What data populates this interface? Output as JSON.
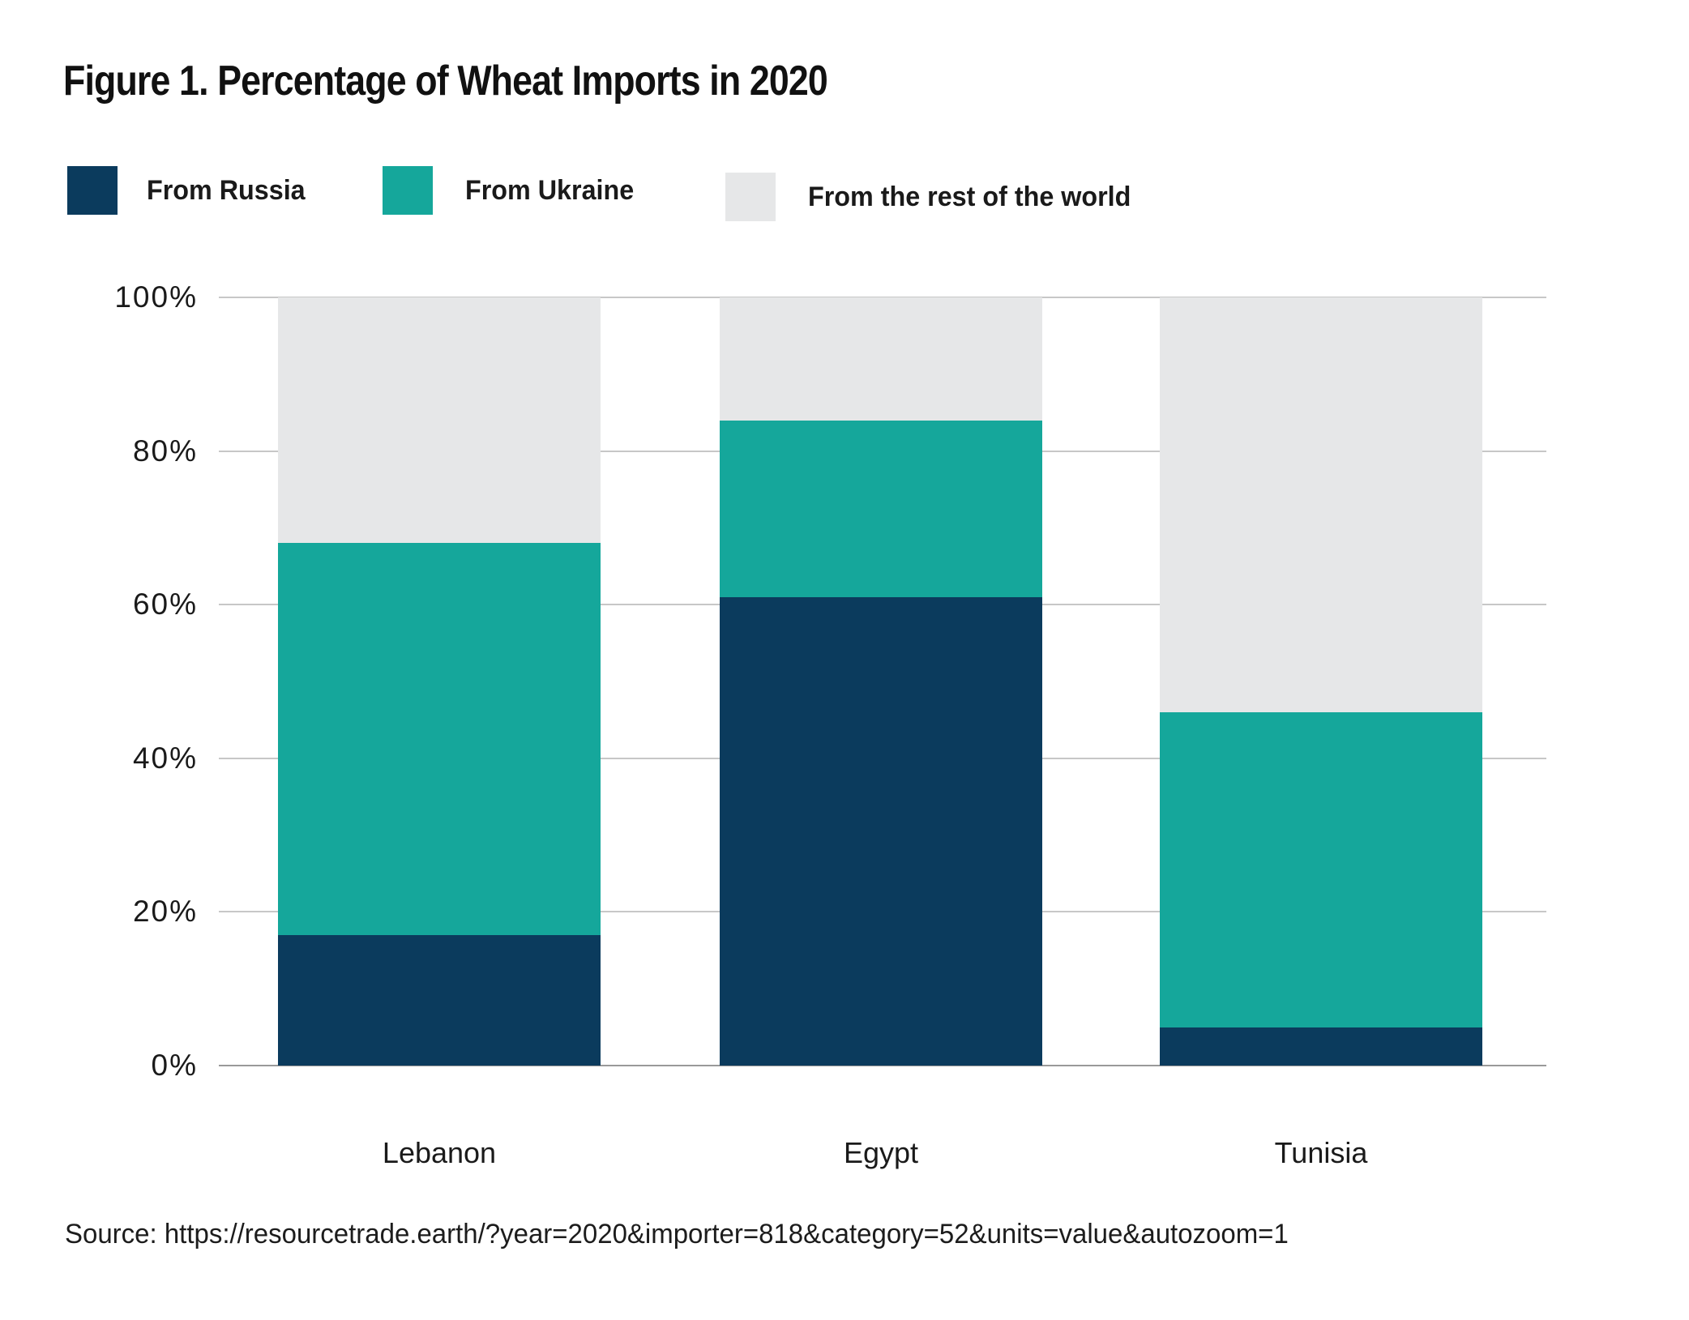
{
  "title": "Figure 1. Percentage of Wheat Imports in 2020",
  "legend": {
    "items": [
      {
        "label": "From Russia",
        "color": "#0B3B5D"
      },
      {
        "label": "From Ukraine",
        "color": "#15A79B"
      },
      {
        "label": "From the rest of the world",
        "color": "#E6E7E8"
      }
    ]
  },
  "y_axis": {
    "tick_labels": [
      "100%",
      "80%",
      "60%",
      "40%",
      "20%",
      "0%"
    ],
    "tick_values": [
      100,
      80,
      60,
      40,
      20,
      0
    ]
  },
  "source": "Source: https://resourcetrade.earth/?year=2020&importer=818&category=52&units=value&autozoom=1",
  "colors": {
    "russia": "#0B3B5D",
    "ukraine": "#15A79B",
    "rest_of_world": "#E6E7E8",
    "gridline": "#c7c7c7",
    "axis_line": "#999999",
    "text": "#1a1a1a"
  },
  "chart_data": {
    "type": "bar",
    "stacked": true,
    "title": "Figure 1. Percentage of Wheat Imports in 2020",
    "categories": [
      "Lebanon",
      "Egypt",
      "Tunisia"
    ],
    "series": [
      {
        "name": "From Russia",
        "color": "#0B3B5D",
        "values": [
          17,
          61,
          5
        ]
      },
      {
        "name": "From Ukraine",
        "color": "#15A79B",
        "values": [
          51,
          23,
          41
        ]
      },
      {
        "name": "From the rest of the world",
        "color": "#E6E7E8",
        "values": [
          32,
          16,
          54
        ]
      }
    ],
    "xlabel": "",
    "ylabel": "",
    "ylim": [
      0,
      100
    ],
    "y_tick_step": 20,
    "unit": "%",
    "grid": true,
    "legend_position": "top"
  }
}
